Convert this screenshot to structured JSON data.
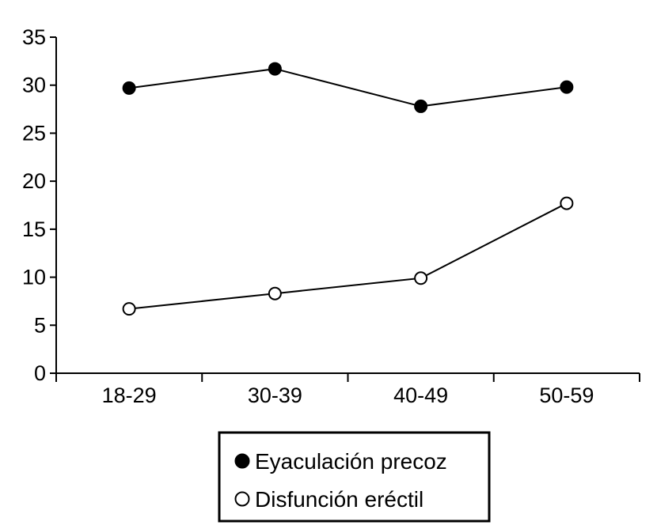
{
  "chart_data": {
    "type": "line",
    "title": "",
    "xlabel": "",
    "ylabel": "",
    "categories": [
      "18-29",
      "30-39",
      "40-49",
      "50-59"
    ],
    "ylim": [
      0,
      35
    ],
    "yticks": [
      0,
      5,
      10,
      15,
      20,
      25,
      30,
      35
    ],
    "grid": false,
    "legend_position": "bottom",
    "series": [
      {
        "name": "Eyaculación precoz",
        "marker": "filled-circle",
        "color": "#000000",
        "values": [
          29.7,
          31.7,
          27.8,
          29.8
        ]
      },
      {
        "name": "Disfunción eréctil",
        "marker": "open-circle",
        "color": "#000000",
        "values": [
          6.7,
          8.3,
          9.9,
          17.7
        ]
      }
    ]
  }
}
